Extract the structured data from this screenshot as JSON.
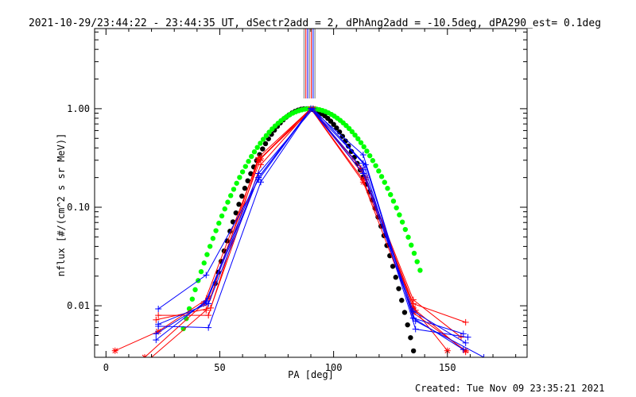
{
  "chart_data": {
    "type": "line",
    "title": "2021-10-29/23:44:22 - 23:44:35 UT, dSectr2add = 2, dPhAng2add = -10.5deg, dPA290_est=  0.1deg",
    "xlabel": "PA [deg]",
    "ylabel": "nflux [#/(cm^2 s sr MeV)]",
    "footer": "Created: Tue Nov 09 23:35:21 2021",
    "xlim": [
      -5,
      185
    ],
    "ylim": [
      0.003,
      6.5
    ],
    "yscale": "log",
    "x_ticks": [
      0,
      50,
      100,
      150
    ],
    "x_tick_labels": [
      "0",
      "50",
      "100",
      "150"
    ],
    "y_ticks": [
      0.01,
      0.1,
      1.0
    ],
    "y_tick_labels": [
      "0.01",
      "0.10",
      "1.00"
    ],
    "grid": false,
    "colors": {
      "red": "#ff0000",
      "blue": "#0000ff",
      "black": "#000000",
      "green": "#00ff00",
      "gray": "#777777"
    },
    "vertical_markers": [
      {
        "x": 87.0,
        "color": "#777777"
      },
      {
        "x": 87.8,
        "color": "#ff0000"
      },
      {
        "x": 88.6,
        "color": "#0000ff"
      },
      {
        "x": 89.4,
        "color": "#777777"
      },
      {
        "x": 90.2,
        "color": "#ff0000"
      },
      {
        "x": 91.0,
        "color": "#0000ff"
      },
      {
        "x": 91.8,
        "color": "#777777"
      }
    ],
    "series": [
      {
        "color": "#ff0000",
        "marker": "star",
        "x": [
          4,
          23,
          45,
          68,
          90,
          113,
          135,
          158
        ],
        "y": [
          0.0035,
          0.0055,
          0.012,
          0.31,
          1.0,
          0.18,
          0.0085,
          0.0035
        ]
      },
      {
        "color": "#ff0000",
        "marker": "plus",
        "x": [
          23,
          45,
          67,
          90,
          112,
          135,
          158
        ],
        "y": [
          0.008,
          0.008,
          0.3,
          1.0,
          0.25,
          0.0105,
          0.0068
        ]
      },
      {
        "color": "#ff0000",
        "marker": "plus",
        "x": [
          22,
          46,
          68,
          90,
          113,
          136,
          158
        ],
        "y": [
          0.0072,
          0.0095,
          0.27,
          1.0,
          0.19,
          0.009,
          0.0034
        ]
      },
      {
        "color": "#ff0000",
        "marker": "star",
        "x": [
          17,
          43,
          67,
          91,
          114,
          135,
          150
        ],
        "y": [
          0.003,
          0.0105,
          0.3,
          1.0,
          0.2,
          0.0095,
          0.0035
        ]
      },
      {
        "color": "#ff0000",
        "marker": "plus",
        "x": [
          20,
          44,
          67,
          90,
          113,
          135,
          156
        ],
        "y": [
          0.003,
          0.009,
          0.32,
          1.0,
          0.22,
          0.0115,
          0.0048
        ]
      },
      {
        "color": "#0000ff",
        "marker": "plus",
        "x": [
          23,
          44,
          67,
          90,
          113,
          135,
          157
        ],
        "y": [
          0.0093,
          0.0205,
          0.19,
          1.0,
          0.34,
          0.0075,
          0.0052
        ]
      },
      {
        "color": "#0000ff",
        "marker": "plus",
        "x": [
          23,
          45,
          68,
          90,
          113,
          136,
          159
        ],
        "y": [
          0.0062,
          0.006,
          0.18,
          1.0,
          0.28,
          0.0058,
          0.0048
        ]
      },
      {
        "color": "#0000ff",
        "marker": "plus",
        "x": [
          22,
          44,
          67,
          91,
          114,
          135,
          157
        ],
        "y": [
          0.0045,
          0.0112,
          0.22,
          1.0,
          0.27,
          0.0075,
          0.0036
        ]
      },
      {
        "color": "#0000ff",
        "marker": "plus",
        "x": [
          23,
          45,
          67,
          90,
          113,
          136,
          166
        ],
        "y": [
          0.0065,
          0.0105,
          0.2,
          1.0,
          0.22,
          0.007,
          0.003
        ]
      },
      {
        "color": "#0000ff",
        "marker": "plus",
        "x": [
          22,
          44,
          67,
          90,
          113,
          135,
          158
        ],
        "y": [
          0.0052,
          0.0108,
          0.2,
          1.0,
          0.24,
          0.0088,
          0.0042
        ]
      }
    ],
    "fit_curves": [
      {
        "color": "#000000",
        "style": "dotted",
        "center": 88,
        "halfwidth_at_e_fold": 19.8,
        "peak": 1.0,
        "xrange": [
          48,
          143
        ]
      },
      {
        "color": "#00ff00",
        "style": "dotted",
        "center": 90,
        "halfwidth_at_e_fold": 24.7,
        "peak": 1.0,
        "xrange": [
          34,
          138
        ]
      }
    ]
  }
}
